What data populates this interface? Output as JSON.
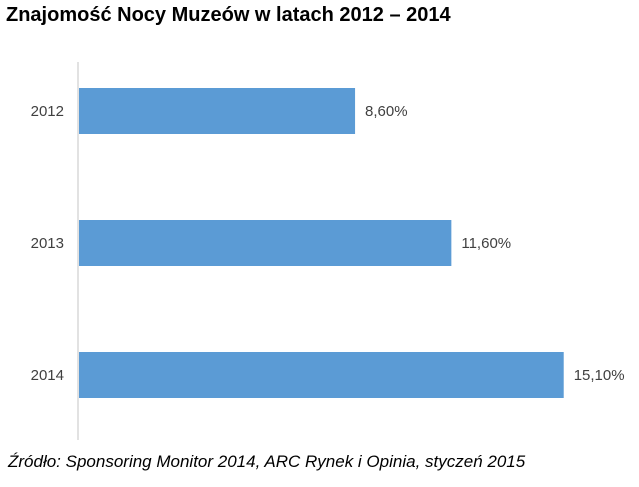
{
  "chart_data": {
    "type": "bar",
    "orientation": "horizontal",
    "title": "Znajomość Nocy Muzeów w latach 2012 – 2014",
    "categories": [
      "2012",
      "2013",
      "2014"
    ],
    "values": [
      8.6,
      11.6,
      15.1
    ],
    "data_labels": [
      "8,60%",
      "11,60%",
      "15,10%"
    ],
    "xlabel": "",
    "ylabel": "",
    "xlim": [
      0,
      16.5
    ],
    "grid": false,
    "bar_color": "#5B9BD5",
    "axis_color": "#D9D9D9",
    "label_color": "#404040"
  },
  "source": "Źródło: Sponsoring Monitor 2014, ARC Rynek i Opinia, styczeń 2015"
}
